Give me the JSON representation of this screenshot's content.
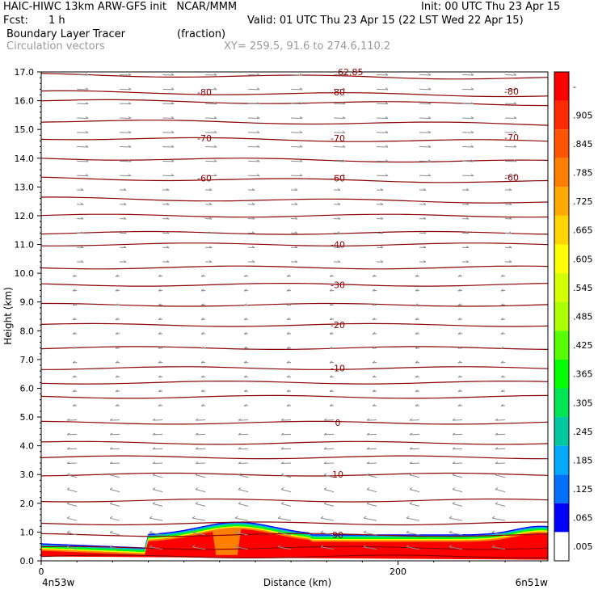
{
  "header": {
    "title_left": "HAIC-HIWC 13km ARW-GFS init   NCAR/MMM",
    "init": "Init: 00 UTC Thu 23 Apr 15",
    "fcst_label": "Fcst:",
    "fcst_value": "1 h",
    "valid": "Valid: 01 UTC Thu 23 Apr 15 (22 LST Wed 22 Apr 15)",
    "field_name": "Boundary Layer Tracer",
    "field_units": "(fraction)",
    "vector_name": "Circulation vectors",
    "xy_range": "XY= 259.5, 91.6 to 274.6,110.2"
  },
  "chart_data": {
    "type": "heatmap",
    "xlabel": "Distance (km)",
    "ylabel": "Height (km)",
    "xlim": [
      0,
      284
    ],
    "ylim": [
      0,
      17
    ],
    "x_ticks": [
      {
        "value": 0,
        "label": "0"
      },
      {
        "value": 200,
        "label": "200"
      }
    ],
    "x_end_labels": {
      "left": "4n53w",
      "right": "6n51w"
    },
    "y_ticks": [
      "0.0",
      "1.0",
      "2.0",
      "3.0",
      "4.0",
      "5.0",
      "6.0",
      "7.0",
      "8.0",
      "9.0",
      "10.0",
      "11.0",
      "12.0",
      "13.0",
      "14.0",
      "15.0",
      "16.0",
      "17.0"
    ],
    "colorbar": {
      "labels": [
        "-",
        ".905",
        ".845",
        ".785",
        ".725",
        ".665",
        ".605",
        ".545",
        ".485",
        ".425",
        ".365",
        ".305",
        ".245",
        ".185",
        ".125",
        ".065",
        ".005"
      ],
      "colors": [
        "#ff0000",
        "#ff2a00",
        "#ff5500",
        "#ff7f00",
        "#ffaa00",
        "#ffd400",
        "#ffff00",
        "#d4ff00",
        "#aaff00",
        "#55ff00",
        "#00ff00",
        "#00e555",
        "#00c8a0",
        "#00aaff",
        "#0070ff",
        "#0000ff",
        "#ffffff"
      ]
    },
    "isotherms": [
      {
        "label": "90",
        "z": 0.9
      },
      {
        "label": "10",
        "z": 3.0
      },
      {
        "label": "0",
        "z": 4.8
      },
      {
        "label": "-10",
        "z": 6.7
      },
      {
        "label": "-20",
        "z": 8.2
      },
      {
        "label": "-30",
        "z": 9.6
      },
      {
        "label": "-40",
        "z": 11.0
      },
      {
        "label": "-60",
        "z": 13.3
      },
      {
        "label": "-70",
        "z": 14.7
      },
      {
        "label": "-80",
        "z": 16.3
      }
    ],
    "isotherm_levels_km": [
      0.15,
      0.45,
      0.9,
      1.3,
      2.1,
      3.0,
      3.6,
      4.1,
      4.8,
      5.7,
      6.2,
      6.7,
      7.4,
      8.2,
      8.9,
      9.6,
      10.2,
      11.0,
      11.4,
      12.0,
      12.6,
      13.3,
      14.0,
      14.7,
      15.3,
      16.0,
      16.3,
      16.9
    ],
    "top_label": "62.85"
  }
}
